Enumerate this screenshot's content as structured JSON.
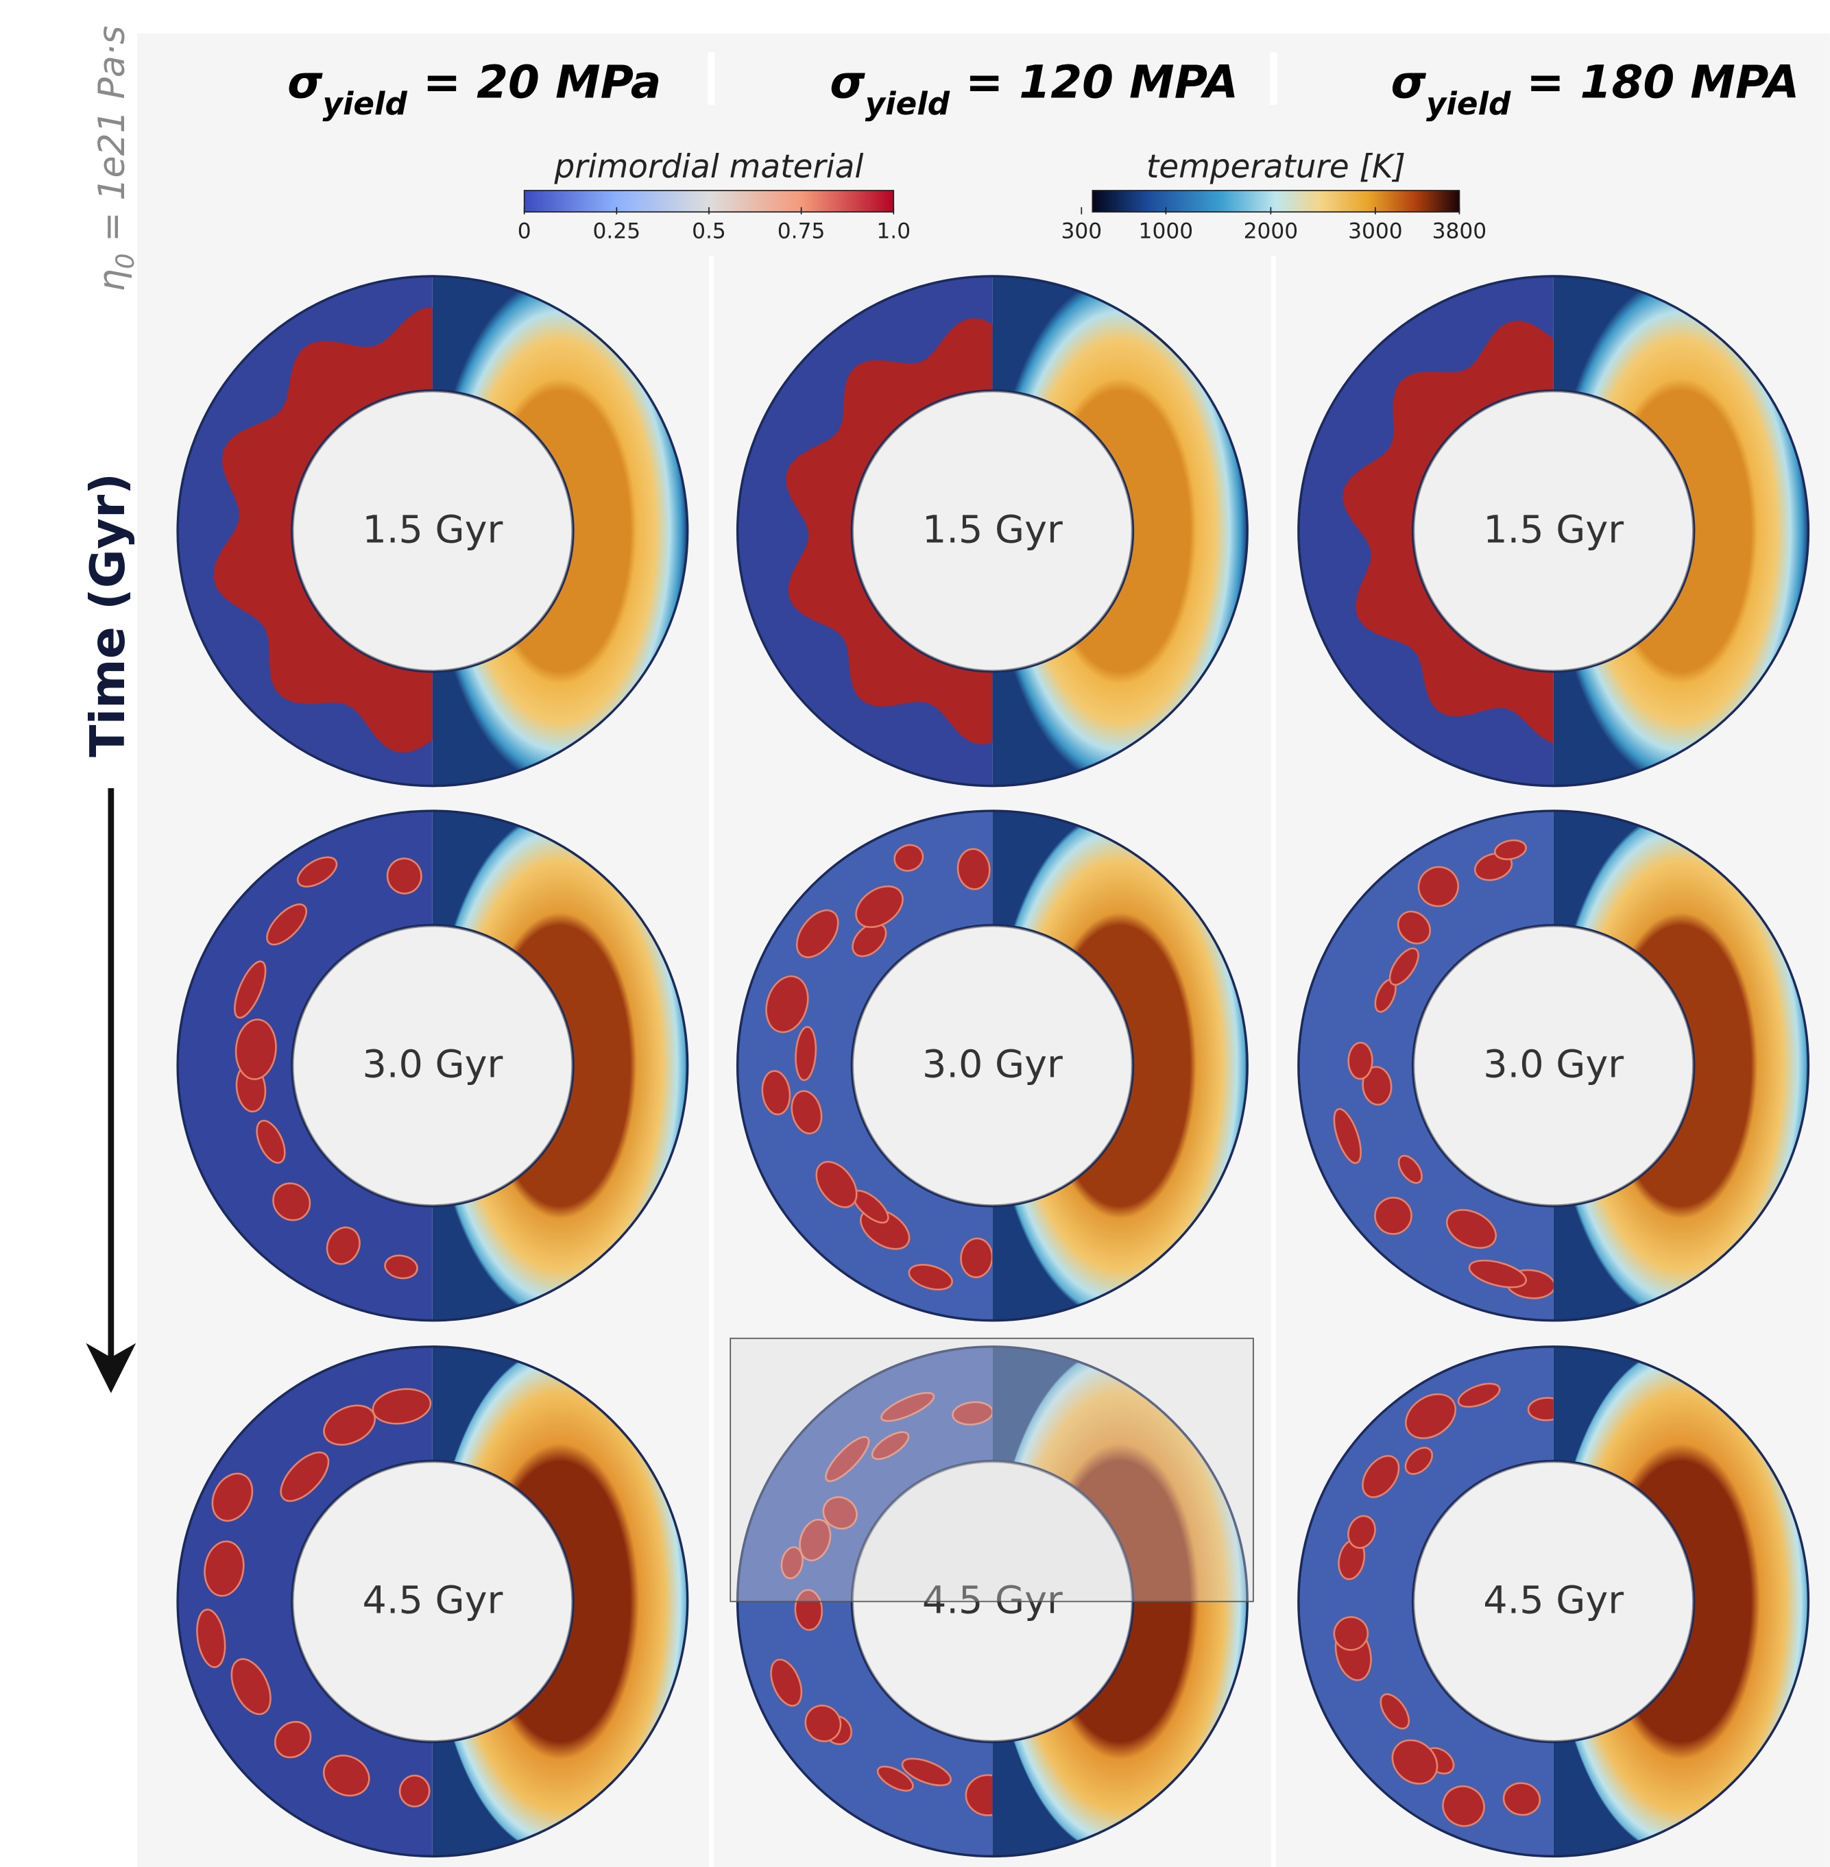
{
  "side_label": {
    "symbol": "η",
    "subscript": "0",
    "text": " = 1e21 Pa·s"
  },
  "columns": [
    {
      "symbol": "σ",
      "subscript": "yield",
      "text": " = 20 MPa"
    },
    {
      "symbol": "σ",
      "subscript": "yield",
      "text": " = 120 MPA"
    },
    {
      "symbol": "σ",
      "subscript": "yield",
      "text": " = 180 MPA"
    }
  ],
  "colorbars": [
    {
      "title": "primordial material",
      "ticks": [
        "0",
        "0.25",
        "0.5",
        "0.75",
        "1.0"
      ]
    },
    {
      "title": "temperature [K]",
      "ticks": [
        "300",
        "1000",
        "2000",
        "3000",
        "3800"
      ]
    }
  ],
  "time_axis_label": "Time (Gyr)",
  "panels": [
    [
      "1.5 Gyr",
      "1.5 Gyr",
      "1.5 Gyr"
    ],
    [
      "3.0 Gyr",
      "3.0 Gyr",
      "3.0 Gyr"
    ],
    [
      "4.5 Gyr",
      "4.5 Gyr",
      "4.5 Gyr"
    ]
  ]
}
